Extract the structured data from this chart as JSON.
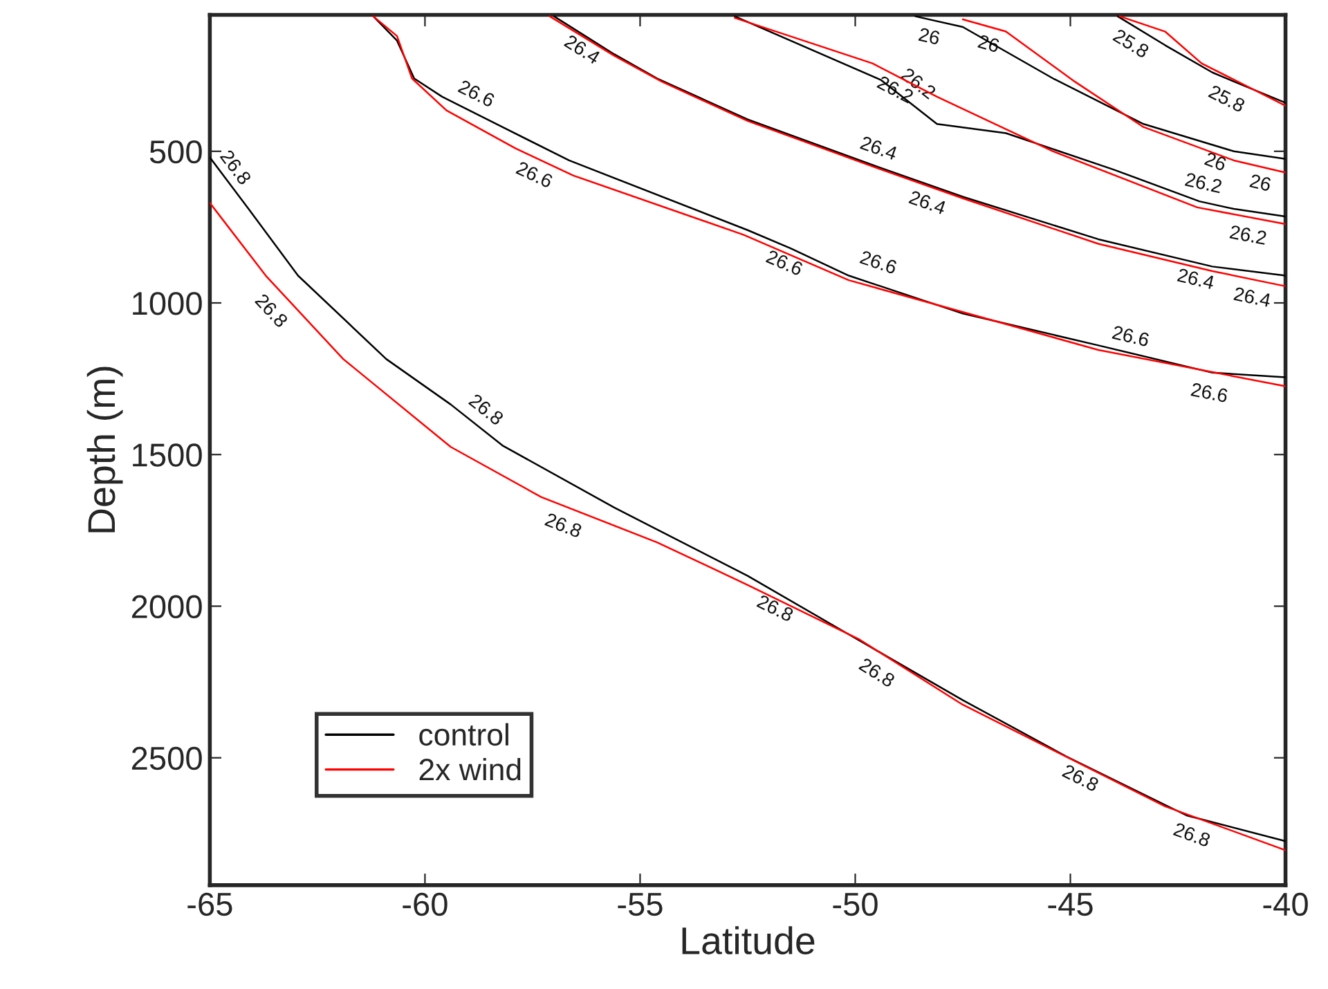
{
  "chart_data": {
    "type": "line",
    "xlabel": "Latitude",
    "ylabel": "Depth (m)",
    "xlim": [
      -65,
      -40
    ],
    "xticks": [
      -65,
      -60,
      -55,
      -50,
      -45,
      -40
    ],
    "ylim": [
      2920,
      50
    ],
    "yticks": [
      500,
      1000,
      1500,
      2000,
      2500
    ],
    "grid": false,
    "legend": "bottom left",
    "marker": "none",
    "line_style": "solid",
    "series": [
      {
        "name": "control",
        "color": "#000000",
        "x": [
          -65,
          -64.1,
          -62.95,
          -60.9,
          -59.4,
          -58.2,
          -55.6,
          -52.5,
          -49.7,
          -47.5,
          -45.1,
          -42.3,
          -40
        ],
        "values": [
          520,
          690,
          910,
          1185,
          1335,
          1470,
          1675,
          1900,
          2130,
          2310,
          2495,
          2690,
          2775
        ]
      },
      {
        "name": "2x wind",
        "color": "#ff0000",
        "x": [
          -65,
          -63.7,
          -61.9,
          -59.4,
          -57.3,
          -54.6,
          -52.5,
          -49.9,
          -47.5,
          -42.8,
          -40
        ],
        "values": [
          670,
          910,
          1185,
          1475,
          1640,
          1790,
          1930,
          2110,
          2325,
          2660,
          2805
        ]
      },
      {
        "color": "#000000",
        "x": [
          -61.2,
          -60.65,
          -60.25,
          -59.6,
          -58.2,
          -56.65,
          -52.5,
          -51.5,
          -50.15,
          -47.5,
          -44.35,
          -41.7,
          -40
        ],
        "values": [
          55,
          135,
          260,
          320,
          420,
          530,
          760,
          820,
          910,
          1035,
          1140,
          1230,
          1245
        ]
      },
      {
        "color": "#ff0000",
        "x": [
          -61.2,
          -60.65,
          -60.3,
          -59.5,
          -57.9,
          -56.55,
          -52.6,
          -50.15,
          -44.35,
          -40
        ],
        "values": [
          55,
          120,
          260,
          365,
          490,
          580,
          775,
          925,
          1155,
          1275
        ]
      },
      {
        "color": "#000000",
        "x": [
          -57.0,
          -55.6,
          -54.6,
          -52.5,
          -49.6,
          -47.5,
          -44.35,
          -41.7,
          -40
        ],
        "values": [
          55,
          180,
          260,
          395,
          545,
          650,
          790,
          880,
          910
        ]
      },
      {
        "color": "#ff0000",
        "x": [
          -57.1,
          -55.6,
          -54.5,
          -52.5,
          -49.6,
          -47.5,
          -44.35,
          -41.7,
          -40
        ],
        "values": [
          55,
          185,
          270,
          400,
          550,
          655,
          805,
          895,
          945
        ]
      },
      {
        "color": "#000000",
        "x": [
          -52.8,
          -49.4,
          -48.1,
          -46.5,
          -44.0,
          -42.0,
          -41.2,
          -40
        ],
        "values": [
          55,
          265,
          410,
          440,
          560,
          665,
          690,
          715
        ]
      },
      {
        "color": "#ff0000",
        "x": [
          -52.8,
          -49.6,
          -48.1,
          -45.4,
          -42.05,
          -40
        ],
        "values": [
          60,
          210,
          320,
          500,
          685,
          740
        ]
      },
      {
        "color": "#000000",
        "x": [
          -48.6,
          -47.5,
          -45.4,
          -43.3,
          -41.2,
          -40
        ],
        "values": [
          55,
          90,
          260,
          410,
          500,
          525
        ]
      },
      {
        "color": "#ff0000",
        "x": [
          -47.5,
          -46.5,
          -44.9,
          -43.3,
          -41.2,
          -40
        ],
        "values": [
          65,
          105,
          270,
          420,
          530,
          570
        ]
      },
      {
        "color": "#000000",
        "x": [
          -43.9,
          -42.8,
          -41.7,
          -41.2,
          -40
        ],
        "values": [
          55,
          150,
          240,
          270,
          340
        ]
      },
      {
        "color": "#ff0000",
        "x": [
          -43.85,
          -42.8,
          -41.95,
          -40
        ],
        "values": [
          55,
          105,
          210,
          350
        ]
      }
    ],
    "annotations": [
      {
        "text": "26.8",
        "x": -64.75,
        "y": 590
      },
      {
        "text": "26.8",
        "x": -63.3,
        "y": 990
      },
      {
        "text": "26.8",
        "x": -58.85,
        "y": 1400
      },
      {
        "text": "26.8",
        "x": -56.65,
        "y": 1685
      },
      {
        "text": "26.8",
        "x": -51.7,
        "y": 1960
      },
      {
        "text": "26.8",
        "x": -49.3,
        "y": 2175
      },
      {
        "text": "26.8",
        "x": -44.6,
        "y": 2520
      },
      {
        "text": "26.8",
        "x": -42.05,
        "y": 2705
      },
      {
        "text": "26.6",
        "x": -59.0,
        "y": 365
      },
      {
        "text": "26.6",
        "x": -57.3,
        "y": 530
      },
      {
        "text": "26.6",
        "x": -51.5,
        "y": 820
      },
      {
        "text": "26.6",
        "x": -49.6,
        "y": 925
      },
      {
        "text": "26.6",
        "x": -43.7,
        "y": 1170
      },
      {
        "text": "26.6",
        "x": -41.7,
        "y": 1245
      },
      {
        "text": "26.4",
        "x": -56.15,
        "y": 120
      },
      {
        "text": "26.4",
        "x": -49.6,
        "y": 548
      },
      {
        "text": "26.4",
        "x": -48.2,
        "y": 620
      },
      {
        "text": "26.4",
        "x": -42.0,
        "y": 870
      },
      {
        "text": "26.4",
        "x": -40.7,
        "y": 930
      },
      {
        "text": "26.2",
        "x": -48.9,
        "y": 250
      },
      {
        "text": "26.2",
        "x": -48.8,
        "y": 325
      },
      {
        "text": "26.2",
        "x": -42.0,
        "y": 665
      },
      {
        "text": "26.2",
        "x": -40.8,
        "y": 725
      },
      {
        "text": "26",
        "x": -48.2,
        "y": 70
      },
      {
        "text": "26",
        "x": -46.8,
        "y": 95
      },
      {
        "text": "26",
        "x": -41.5,
        "y": 485
      },
      {
        "text": "26",
        "x": -40.5,
        "y": 553
      },
      {
        "text": "25.8",
        "x": -43.4,
        "y": 100
      },
      {
        "text": "25.8",
        "x": -41.2,
        "y": 280
      }
    ]
  }
}
